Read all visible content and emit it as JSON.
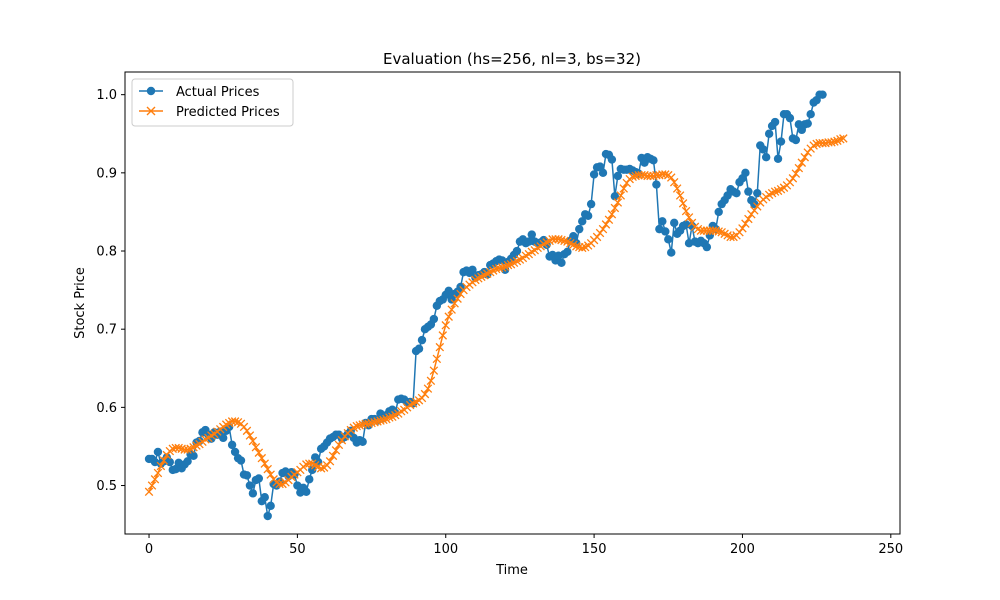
{
  "chart_data": {
    "type": "line",
    "title": "Evaluation (hs=256, nl=3, bs=32)",
    "xlabel": "Time",
    "ylabel": "Stock Price",
    "xlim": [
      -8.1,
      253.1
    ],
    "ylim": [
      0.438,
      1.029
    ],
    "xticks": [
      0,
      50,
      100,
      150,
      200,
      250
    ],
    "yticks": [
      0.5,
      0.6,
      0.7,
      0.8,
      0.9,
      1.0
    ],
    "grid": false,
    "legend": "top-left",
    "colors": {
      "actual": "#1f77b4",
      "predicted": "#ff7f0e"
    },
    "series": [
      {
        "name": "Actual Prices",
        "marker": "o",
        "values": [
          0.534,
          0.534,
          0.53,
          0.543,
          0.528,
          0.531,
          0.536,
          0.53,
          0.52,
          0.521,
          0.529,
          0.522,
          0.527,
          0.531,
          0.54,
          0.538,
          0.555,
          0.557,
          0.568,
          0.571,
          0.565,
          0.56,
          0.568,
          0.565,
          0.569,
          0.561,
          0.57,
          0.575,
          0.552,
          0.543,
          0.535,
          0.532,
          0.514,
          0.513,
          0.5,
          0.49,
          0.507,
          0.509,
          0.48,
          0.485,
          0.461,
          0.474,
          0.502,
          0.5,
          0.505,
          0.516,
          0.518,
          0.512,
          0.517,
          0.514,
          0.5,
          0.491,
          0.497,
          0.492,
          0.508,
          0.52,
          0.536,
          0.53,
          0.547,
          0.55,
          0.555,
          0.56,
          0.562,
          0.565,
          0.565,
          0.56,
          0.562,
          0.566,
          0.57,
          0.561,
          0.555,
          0.558,
          0.556,
          0.58,
          0.577,
          0.585,
          0.585,
          0.583,
          0.592,
          0.586,
          0.59,
          0.595,
          0.597,
          0.593,
          0.61,
          0.611,
          0.61,
          0.606,
          0.607,
          0.605,
          0.672,
          0.675,
          0.686,
          0.7,
          0.703,
          0.706,
          0.713,
          0.73,
          0.736,
          0.738,
          0.744,
          0.749,
          0.738,
          0.745,
          0.748,
          0.754,
          0.773,
          0.775,
          0.772,
          0.776,
          0.766,
          0.769,
          0.77,
          0.773,
          0.77,
          0.782,
          0.784,
          0.787,
          0.789,
          0.788,
          0.776,
          0.786,
          0.79,
          0.795,
          0.8,
          0.812,
          0.815,
          0.81,
          0.812,
          0.821,
          0.812,
          0.81,
          0.811,
          0.814,
          0.808,
          0.793,
          0.795,
          0.788,
          0.794,
          0.785,
          0.796,
          0.799,
          0.813,
          0.819,
          0.81,
          0.828,
          0.838,
          0.847,
          0.845,
          0.86,
          0.898,
          0.907,
          0.908,
          0.9,
          0.924,
          0.923,
          0.917,
          0.87,
          0.896,
          0.905,
          0.904,
          0.904,
          0.905,
          0.903,
          0.901,
          0.899,
          0.919,
          0.913,
          0.92,
          0.918,
          0.916,
          0.885,
          0.828,
          0.838,
          0.825,
          0.815,
          0.798,
          0.836,
          0.822,
          0.826,
          0.832,
          0.834,
          0.81,
          0.832,
          0.812,
          0.81,
          0.813,
          0.81,
          0.805,
          0.82,
          0.832,
          0.828,
          0.85,
          0.86,
          0.865,
          0.871,
          0.879,
          0.876,
          0.874,
          0.888,
          0.893,
          0.9,
          0.876,
          0.865,
          0.86,
          0.874,
          0.935,
          0.93,
          0.92,
          0.95,
          0.96,
          0.965,
          0.918,
          0.94,
          0.975,
          0.975,
          0.97,
          0.944,
          0.942,
          0.962,
          0.955,
          0.962,
          0.963,
          0.975,
          0.99,
          0.993,
          1.0,
          1.0
        ]
      },
      {
        "name": "Predicted Prices",
        "marker": "x",
        "values": [
          0.492,
          0.5,
          0.508,
          0.516,
          0.525,
          0.532,
          0.539,
          0.544,
          0.547,
          0.548,
          0.548,
          0.547,
          0.546,
          0.546,
          0.547,
          0.549,
          0.551,
          0.553,
          0.556,
          0.559,
          0.561,
          0.564,
          0.566,
          0.569,
          0.572,
          0.575,
          0.578,
          0.58,
          0.582,
          0.582,
          0.581,
          0.579,
          0.575,
          0.57,
          0.564,
          0.557,
          0.549,
          0.542,
          0.535,
          0.528,
          0.521,
          0.514,
          0.508,
          0.504,
          0.502,
          0.502,
          0.504,
          0.507,
          0.511,
          0.514,
          0.517,
          0.52,
          0.524,
          0.527,
          0.528,
          0.528,
          0.526,
          0.524,
          0.522,
          0.523,
          0.526,
          0.531,
          0.538,
          0.545,
          0.552,
          0.558,
          0.563,
          0.567,
          0.571,
          0.574,
          0.576,
          0.577,
          0.578,
          0.579,
          0.579,
          0.58,
          0.581,
          0.582,
          0.583,
          0.584,
          0.585,
          0.587,
          0.588,
          0.59,
          0.592,
          0.595,
          0.597,
          0.6,
          0.603,
          0.605,
          0.607,
          0.609,
          0.612,
          0.617,
          0.624,
          0.634,
          0.647,
          0.662,
          0.677,
          0.692,
          0.705,
          0.716,
          0.725,
          0.733,
          0.739,
          0.745,
          0.75,
          0.754,
          0.757,
          0.76,
          0.763,
          0.765,
          0.767,
          0.769,
          0.771,
          0.773,
          0.775,
          0.777,
          0.778,
          0.779,
          0.78,
          0.782,
          0.783,
          0.785,
          0.787,
          0.789,
          0.791,
          0.794,
          0.796,
          0.799,
          0.801,
          0.804,
          0.806,
          0.809,
          0.811,
          0.813,
          0.815,
          0.815,
          0.815,
          0.814,
          0.813,
          0.812,
          0.81,
          0.808,
          0.806,
          0.805,
          0.804,
          0.805,
          0.807,
          0.81,
          0.814,
          0.818,
          0.823,
          0.828,
          0.834,
          0.84,
          0.847,
          0.855,
          0.862,
          0.871,
          0.88,
          0.887,
          0.892,
          0.895,
          0.896,
          0.897,
          0.897,
          0.897,
          0.896,
          0.896,
          0.896,
          0.897,
          0.897,
          0.898,
          0.898,
          0.897,
          0.894,
          0.888,
          0.88,
          0.871,
          0.861,
          0.851,
          0.843,
          0.836,
          0.831,
          0.828,
          0.826,
          0.826,
          0.826,
          0.826,
          0.826,
          0.826,
          0.825,
          0.824,
          0.822,
          0.82,
          0.818,
          0.818,
          0.82,
          0.824,
          0.829,
          0.835,
          0.841,
          0.847,
          0.852,
          0.857,
          0.862,
          0.866,
          0.869,
          0.872,
          0.874,
          0.876,
          0.877,
          0.879,
          0.881,
          0.884,
          0.888,
          0.893,
          0.899,
          0.906,
          0.913,
          0.92,
          0.926,
          0.931,
          0.935,
          0.937,
          0.938,
          0.938,
          0.938,
          0.939,
          0.939,
          0.94,
          0.941,
          0.943,
          0.944
        ]
      }
    ]
  }
}
